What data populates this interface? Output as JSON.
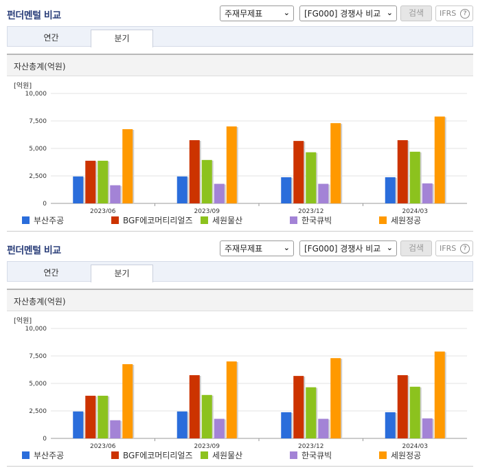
{
  "panels": [
    {
      "header": {
        "title": "펀더멘털 비교"
      },
      "controls": {
        "statement_select": "주재무제표",
        "peer_select": "[FG000] 경쟁사 비교",
        "search_button": "검색",
        "ifrs_label": "IFRS",
        "help_icon": "?"
      },
      "tabs": [
        {
          "label": "연간"
        },
        {
          "label": "분기"
        }
      ],
      "section_title": "자산총계(억원)",
      "unit_label": "[억원]"
    },
    {
      "header": {
        "title": "펀더멘털 비교"
      },
      "controls": {
        "statement_select": "주재무제표",
        "peer_select": "[FG000] 경쟁사 비교",
        "search_button": "검색",
        "ifrs_label": "IFRS",
        "help_icon": "?"
      },
      "tabs": [
        {
          "label": "연간"
        },
        {
          "label": "분기"
        }
      ],
      "section_title": "자산총계(억원)",
      "unit_label": "[억원]"
    }
  ],
  "chart_data": [
    {
      "type": "bar",
      "categories": [
        "2023/06",
        "2023/09",
        "2023/12",
        "2024/03"
      ],
      "ylabel": "[억원]",
      "ylim": [
        0,
        10000
      ],
      "yticks": [
        "0",
        "2,500",
        "5,000",
        "7,500",
        "10,000"
      ],
      "ytick_values": [
        0,
        2500,
        5000,
        7500,
        10000
      ],
      "legend_position": "bottom",
      "series": [
        {
          "name": "부산주공",
          "color": "#2a6ddb",
          "values": [
            2450,
            2450,
            2380,
            2380
          ]
        },
        {
          "name": "BGF에코머티리얼즈",
          "color": "#cc3300",
          "values": [
            3880,
            5750,
            5680,
            5750
          ]
        },
        {
          "name": "세원물산",
          "color": "#8cc21e",
          "values": [
            3880,
            3950,
            4650,
            4700
          ]
        },
        {
          "name": "한국큐빅",
          "color": "#a383d6",
          "values": [
            1650,
            1780,
            1780,
            1820
          ]
        },
        {
          "name": "세원정공",
          "color": "#ff9900",
          "values": [
            6750,
            7000,
            7300,
            7900
          ]
        }
      ]
    },
    {
      "type": "bar",
      "categories": [
        "2023/06",
        "2023/09",
        "2023/12",
        "2024/03"
      ],
      "ylabel": "[억원]",
      "ylim": [
        0,
        10000
      ],
      "yticks": [
        "0",
        "2,500",
        "5,000",
        "7,500",
        "10,000"
      ],
      "ytick_values": [
        0,
        2500,
        5000,
        7500,
        10000
      ],
      "legend_position": "bottom",
      "series": [
        {
          "name": "부산주공",
          "color": "#2a6ddb",
          "values": [
            2450,
            2450,
            2380,
            2380
          ]
        },
        {
          "name": "BGF에코머티리얼즈",
          "color": "#cc3300",
          "values": [
            3880,
            5750,
            5680,
            5750
          ]
        },
        {
          "name": "세원물산",
          "color": "#8cc21e",
          "values": [
            3880,
            3950,
            4650,
            4700
          ]
        },
        {
          "name": "한국큐빅",
          "color": "#a383d6",
          "values": [
            1650,
            1780,
            1780,
            1820
          ]
        },
        {
          "name": "세원정공",
          "color": "#ff9900",
          "values": [
            6750,
            7000,
            7300,
            7900
          ]
        }
      ]
    }
  ]
}
